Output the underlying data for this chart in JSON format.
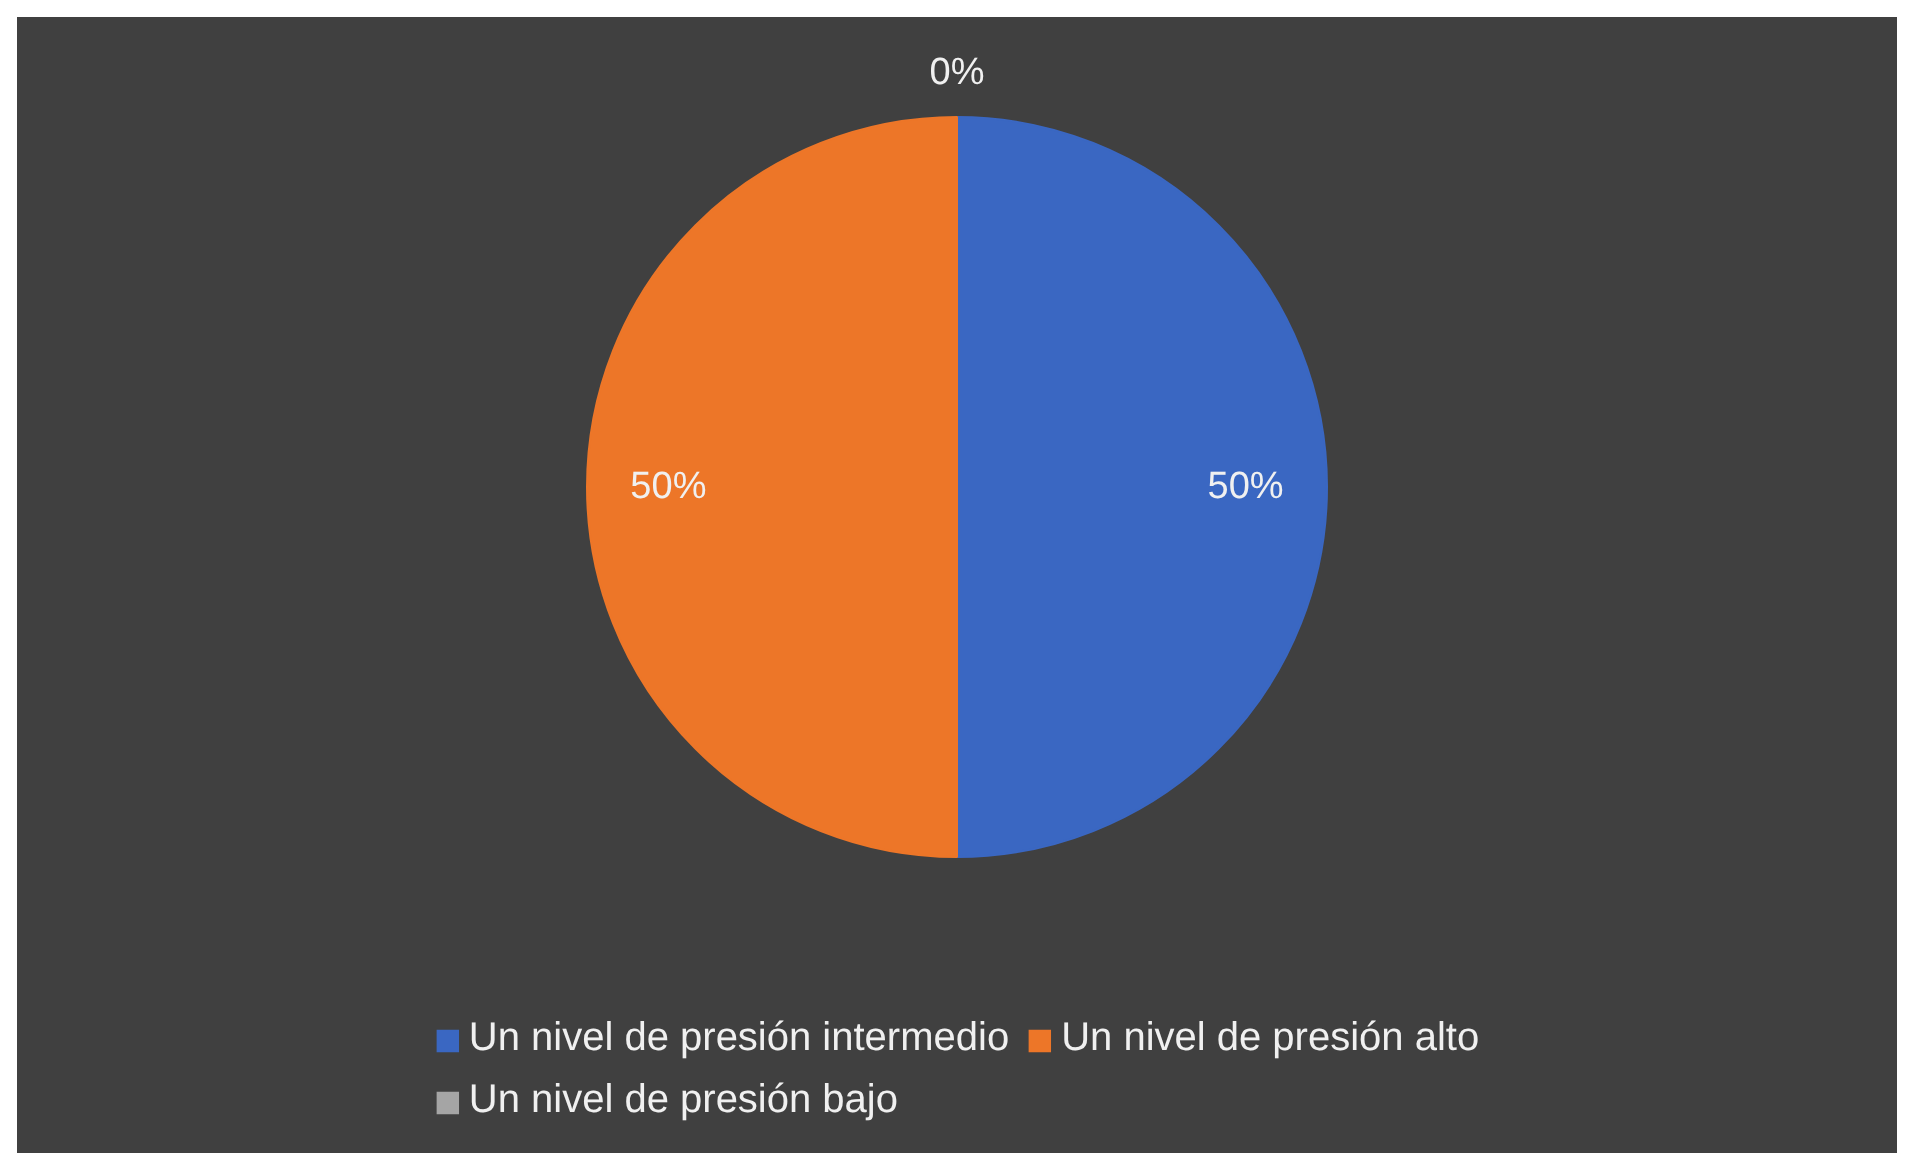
{
  "chart_data": {
    "type": "pie",
    "categories": [
      "Un nivel de presión intermedio",
      "Un nivel de presión alto",
      "Un nivel de presión bajo"
    ],
    "values": [
      50,
      50,
      0
    ],
    "colors": [
      "#3a67c2",
      "#ed7628",
      "#a5a5a5"
    ],
    "value_labels": [
      "50%",
      "50%",
      "0%"
    ],
    "legend": "bottom"
  }
}
